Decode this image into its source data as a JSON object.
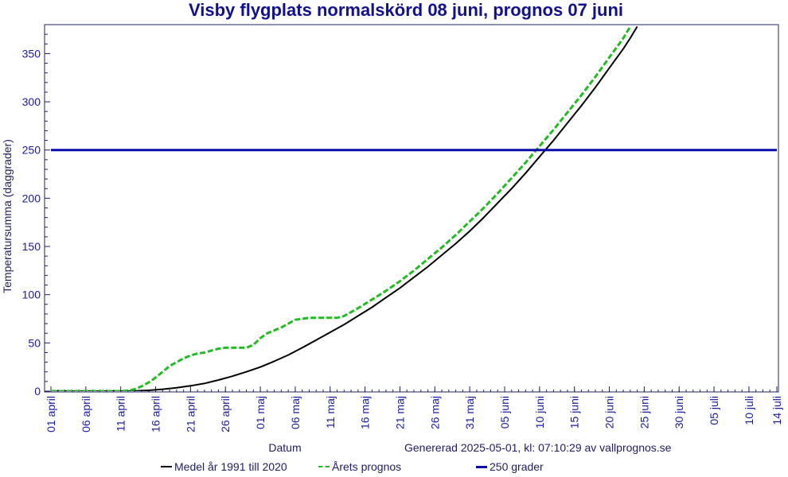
{
  "colors": {
    "axis": "#202060",
    "tick_text": "#1a1aa0",
    "title": "#101090",
    "medel": "#000000",
    "prognos": "#22bb22",
    "threshold": "#0a0aa8"
  },
  "chart_data": {
    "type": "line",
    "title": "Visby flygplats normalskörd 08 juni, prognos 07 juni",
    "xlabel": "Datum",
    "ylabel": "Temperatursumma (daggrader)",
    "ylim": [
      0,
      380
    ],
    "y_ticks": [
      0,
      50,
      100,
      150,
      200,
      250,
      300,
      350
    ],
    "x_ticks": [
      {
        "day": 0,
        "label": "01 april"
      },
      {
        "day": 5,
        "label": "06 april"
      },
      {
        "day": 10,
        "label": "11 april"
      },
      {
        "day": 15,
        "label": "16 april"
      },
      {
        "day": 20,
        "label": "21 april"
      },
      {
        "day": 25,
        "label": "26 april"
      },
      {
        "day": 30,
        "label": "01 maj"
      },
      {
        "day": 35,
        "label": "06 maj"
      },
      {
        "day": 40,
        "label": "11 maj"
      },
      {
        "day": 45,
        "label": "16 maj"
      },
      {
        "day": 50,
        "label": "21 maj"
      },
      {
        "day": 55,
        "label": "26 maj"
      },
      {
        "day": 60,
        "label": "31 maj"
      },
      {
        "day": 65,
        "label": "05 juni"
      },
      {
        "day": 70,
        "label": "10 juni"
      },
      {
        "day": 75,
        "label": "15 juni"
      },
      {
        "day": 80,
        "label": "20 juni"
      },
      {
        "day": 85,
        "label": "25 juni"
      },
      {
        "day": 90,
        "label": "30 juni"
      },
      {
        "day": 95,
        "label": "05 juli"
      },
      {
        "day": 100,
        "label": "10 juli"
      },
      {
        "day": 104,
        "label": "14 juli"
      }
    ],
    "xlim": [
      0,
      104
    ],
    "grid": false,
    "legend": "bottom",
    "series": [
      {
        "name": "Medel år 1991 till 2020",
        "x": [
          0,
          5,
          10,
          12,
          14,
          16,
          18,
          20,
          22,
          24,
          26,
          28,
          30,
          32,
          34,
          36,
          38,
          40,
          42,
          44,
          46,
          48,
          50,
          52,
          54,
          56,
          58,
          60,
          62,
          64,
          66,
          68,
          70,
          72,
          74,
          76,
          78,
          80,
          82,
          83,
          84
        ],
        "y": [
          0,
          0,
          0,
          0.2,
          0.8,
          2,
          3.5,
          5.5,
          8,
          11.5,
          15.5,
          20,
          25,
          31,
          37.5,
          45,
          53,
          61,
          69,
          78,
          87,
          97,
          107,
          118,
          129,
          141,
          153,
          166,
          180,
          195,
          210,
          226,
          243,
          260,
          278,
          296,
          315,
          335,
          355,
          366,
          378
        ]
      },
      {
        "name": "Årets prognos",
        "x": [
          0,
          5,
          10,
          11,
          12,
          13,
          14,
          15,
          16,
          17,
          18,
          19,
          20,
          21,
          22,
          23,
          24,
          25,
          26,
          27,
          28,
          29,
          30,
          31,
          32,
          33,
          34,
          35,
          36,
          37,
          38,
          39,
          40,
          41,
          42,
          44,
          46,
          48,
          50,
          52,
          54,
          56,
          58,
          60,
          62,
          64,
          66,
          68,
          70,
          72,
          74,
          76,
          78,
          80,
          82,
          83
        ],
        "y": [
          0,
          0,
          0,
          0.5,
          2,
          5,
          9,
          14,
          20,
          26,
          30,
          34,
          37,
          39,
          40,
          42,
          44,
          45,
          45,
          45,
          45,
          48,
          55,
          60,
          63,
          66,
          70,
          74,
          75,
          76,
          76,
          76,
          76,
          76,
          78,
          86,
          95,
          104,
          114,
          125,
          137,
          149,
          162,
          176,
          190,
          205,
          221,
          237,
          254,
          271,
          289,
          307,
          326,
          346,
          366,
          378
        ]
      },
      {
        "name": "250 grader",
        "x": [
          0,
          104
        ],
        "y": [
          250,
          250
        ]
      }
    ]
  },
  "footer": {
    "generated": "Genererad 2025-05-01, kl: 07:10:29 av vallprognos.se"
  }
}
